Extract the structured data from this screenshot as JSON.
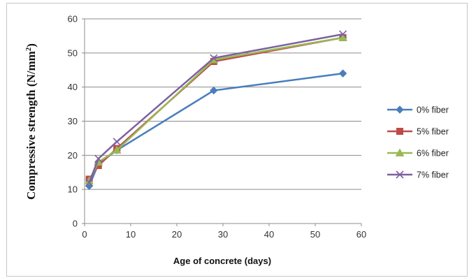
{
  "chart_data": {
    "type": "line",
    "title": "",
    "xlabel": "Age of concrete (days)",
    "ylabel": {
      "main": "Compressive strength (N/mm",
      "sup": "2",
      "close": ")"
    },
    "xlim": [
      0,
      60
    ],
    "ylim": [
      0,
      60
    ],
    "x_ticks": [
      0,
      10,
      20,
      30,
      40,
      50,
      60
    ],
    "y_ticks": [
      0,
      10,
      20,
      30,
      40,
      50,
      60
    ],
    "grid": "horizontal",
    "legend_position": "right",
    "x": [
      1,
      3,
      7,
      28,
      56
    ],
    "series": [
      {
        "name": "0% fiber",
        "values": [
          11,
          17.5,
          21.5,
          39,
          44
        ],
        "color": "#4a7ebb",
        "marker": "diamond"
      },
      {
        "name": "5% fiber",
        "values": [
          13,
          17,
          22,
          47.5,
          54.5
        ],
        "color": "#be4b48",
        "marker": "square"
      },
      {
        "name": "6% fiber",
        "values": [
          12.5,
          18,
          21.5,
          48,
          54.5
        ],
        "color": "#98b954",
        "marker": "triangle"
      },
      {
        "name": "7% fiber",
        "values": [
          12,
          19,
          24,
          48.5,
          55.5
        ],
        "color": "#7d60a0",
        "marker": "x"
      }
    ]
  }
}
